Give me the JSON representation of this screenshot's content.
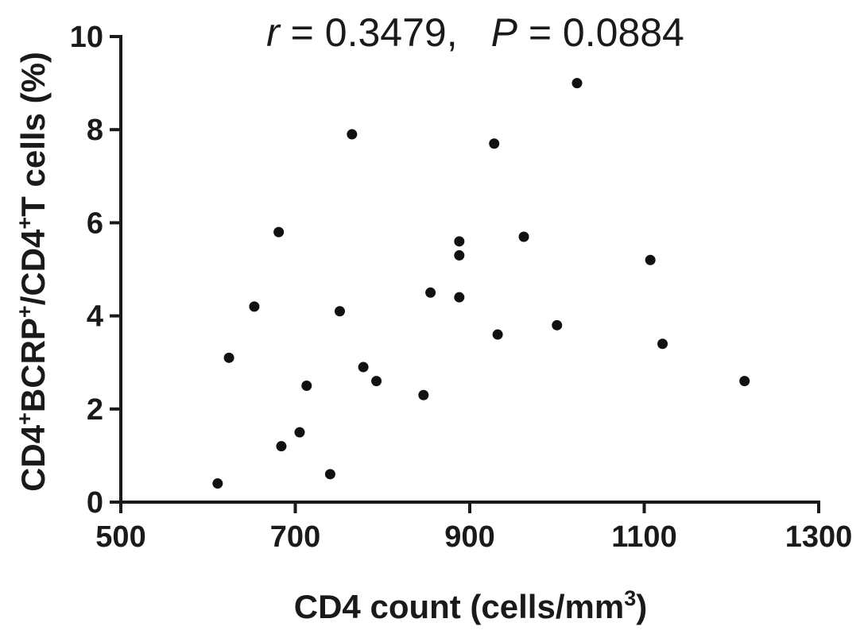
{
  "chart_data": {
    "type": "scatter",
    "title": "",
    "annotation": {
      "r_symbol": "r",
      "r_text": " = 0.3479,",
      "p_symbol": "P",
      "p_text": " = 0.0884"
    },
    "xlabel": {
      "main": "CD4  count (cells/mm",
      "sup": "3",
      "end": ")"
    },
    "ylabel": {
      "p1": "CD4",
      "s1": "+",
      "p2": "BCRP",
      "s2": "+",
      "p3": "/CD4",
      "s3": "+",
      "p4": "T cells (%)"
    },
    "xlim": [
      500,
      1300
    ],
    "ylim": [
      0,
      10
    ],
    "x_ticks": [
      "500",
      "700",
      "900",
      "1100",
      "1300"
    ],
    "y_ticks": [
      "0",
      "2",
      "4",
      "6",
      "8",
      "10"
    ],
    "grid": false,
    "points": [
      {
        "x": 611,
        "y": 0.4
      },
      {
        "x": 624,
        "y": 3.1
      },
      {
        "x": 653,
        "y": 4.2
      },
      {
        "x": 681,
        "y": 5.8
      },
      {
        "x": 684,
        "y": 1.2
      },
      {
        "x": 705,
        "y": 1.5
      },
      {
        "x": 713,
        "y": 2.5
      },
      {
        "x": 740,
        "y": 0.6
      },
      {
        "x": 751,
        "y": 4.1
      },
      {
        "x": 765,
        "y": 7.9
      },
      {
        "x": 778,
        "y": 2.9
      },
      {
        "x": 793,
        "y": 2.6
      },
      {
        "x": 847,
        "y": 2.3
      },
      {
        "x": 855,
        "y": 4.5
      },
      {
        "x": 888,
        "y": 5.6
      },
      {
        "x": 888,
        "y": 5.3
      },
      {
        "x": 888,
        "y": 4.4
      },
      {
        "x": 928,
        "y": 7.7
      },
      {
        "x": 932,
        "y": 3.6
      },
      {
        "x": 962,
        "y": 5.7
      },
      {
        "x": 1000,
        "y": 3.8
      },
      {
        "x": 1023,
        "y": 9.0
      },
      {
        "x": 1107,
        "y": 5.2
      },
      {
        "x": 1121,
        "y": 3.4
      },
      {
        "x": 1215,
        "y": 2.6
      }
    ],
    "marker_color": "#111111",
    "axis_color": "#1a1a1a"
  }
}
